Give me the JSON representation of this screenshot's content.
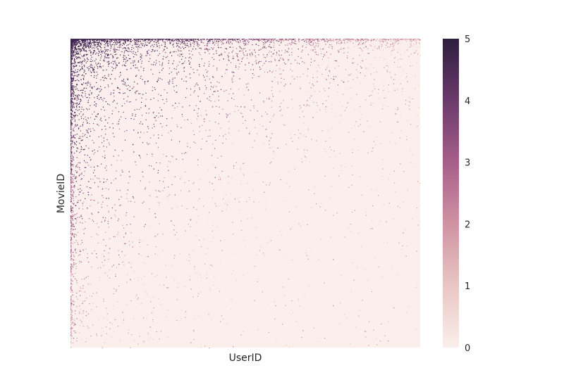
{
  "chart_data": {
    "type": "heatmap",
    "title": "",
    "xlabel": "UserID",
    "ylabel": "MovieID",
    "x_tick_labels": [],
    "y_tick_labels": [],
    "colorbar": {
      "min": 0,
      "max": 5,
      "ticks": [
        "0",
        "1",
        "2",
        "3",
        "4",
        "5"
      ],
      "low_color": "#faefec",
      "high_color": "#2d1e3e"
    },
    "description_of_values": "Sparse rating matrix; nonzero values (1-5) concentrated in top-left, most cells 0",
    "grid": false
  }
}
